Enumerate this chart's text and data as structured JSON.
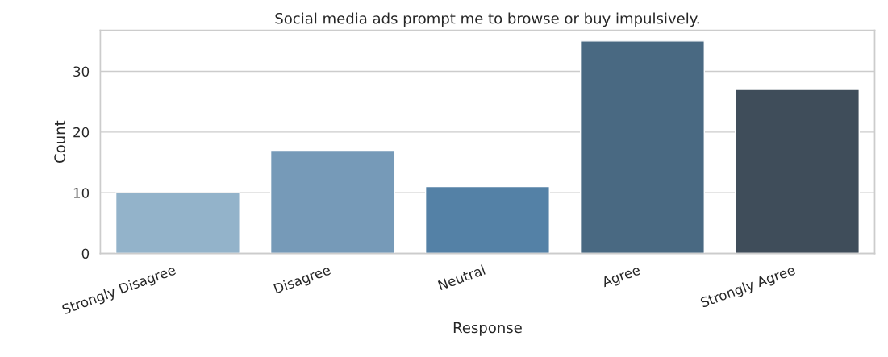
{
  "chart_data": {
    "type": "bar",
    "title": "Social media ads prompt me to browse or buy impulsively.",
    "xlabel": "Response",
    "ylabel": "Count",
    "categories": [
      "Strongly Disagree",
      "Disagree",
      "Neutral",
      "Agree",
      "Strongly Agree"
    ],
    "values": [
      10,
      17,
      11,
      35,
      27
    ],
    "colors": [
      "#8ab4d3",
      "#6b9bc3",
      "#4682b4",
      "#3f6a8c",
      "#3b4d5e"
    ],
    "ylim": [
      0,
      36.75
    ],
    "yticks": [
      0,
      10,
      20,
      30
    ],
    "grid": "y"
  }
}
